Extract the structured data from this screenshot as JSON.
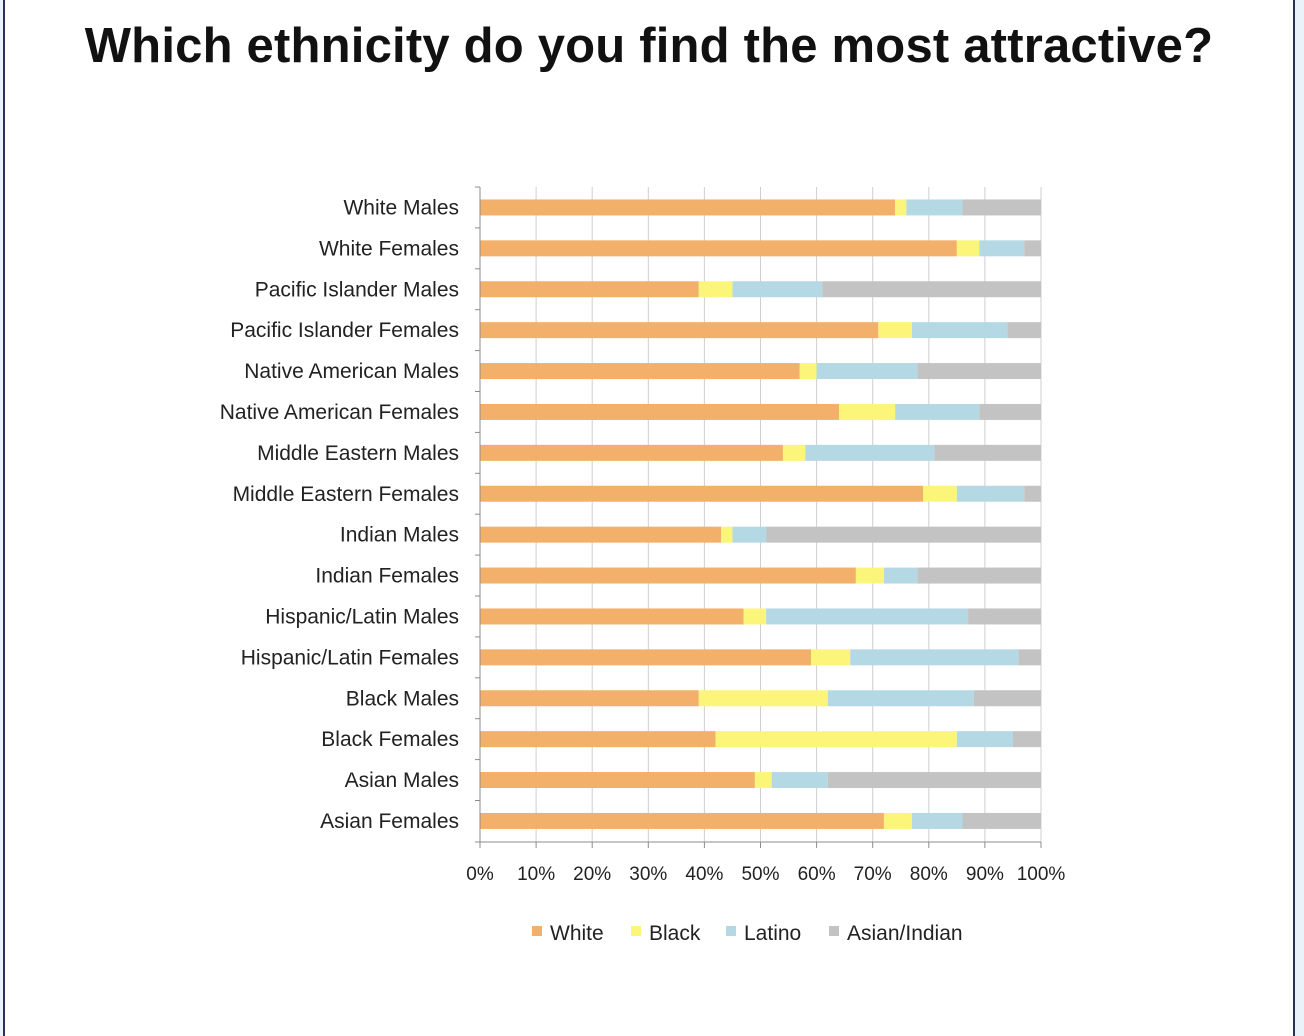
{
  "title": "Which ethnicity do you find the most attractive?",
  "colors": {
    "White": "#f2b06a",
    "Black": "#fbf57a",
    "Latino": "#b5d9e4",
    "Asian/Indian": "#c3c3c3",
    "grid": "#cfcfcf",
    "axis": "#8c8c8c"
  },
  "chart_data": {
    "type": "bar",
    "orientation": "horizontal",
    "stacked": true,
    "percent_stacked": true,
    "categories": [
      "White Males",
      "White Females",
      "Pacific Islander Males",
      "Pacific Islander Females",
      "Native American Males",
      "Native American Females",
      "Middle Eastern Males",
      "Middle Eastern Females",
      "Indian Males",
      "Indian Females",
      "Hispanic/Latin Males",
      "Hispanic/Latin Females",
      "Black Males",
      "Black Females",
      "Asian Males",
      "Asian Females"
    ],
    "series": [
      {
        "name": "White",
        "values": [
          74,
          85,
          39,
          71,
          57,
          64,
          54,
          79,
          43,
          67,
          47,
          59,
          39,
          42,
          49,
          72
        ]
      },
      {
        "name": "Black",
        "values": [
          2,
          4,
          6,
          6,
          3,
          10,
          4,
          6,
          2,
          5,
          4,
          7,
          23,
          43,
          3,
          5
        ]
      },
      {
        "name": "Latino",
        "values": [
          10,
          8,
          16,
          17,
          18,
          15,
          23,
          12,
          6,
          6,
          36,
          30,
          26,
          10,
          10,
          9
        ]
      },
      {
        "name": "Asian/Indian",
        "values": [
          14,
          3,
          39,
          6,
          22,
          11,
          19,
          3,
          49,
          22,
          13,
          4,
          12,
          5,
          38,
          14
        ]
      }
    ],
    "xaxis": {
      "ticks": [
        "0%",
        "10%",
        "20%",
        "30%",
        "40%",
        "50%",
        "60%",
        "70%",
        "80%",
        "90%",
        "100%"
      ],
      "range": [
        0,
        100
      ]
    },
    "grid": true,
    "legend": {
      "position": "bottom",
      "entries": [
        "White",
        "Black",
        "Latino",
        "Asian/Indian"
      ]
    }
  }
}
